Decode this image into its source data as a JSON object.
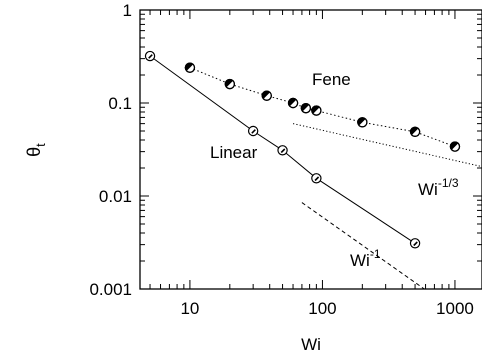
{
  "chart_data": {
    "type": "scatter",
    "xlabel": "Wi",
    "ylabel": "θ",
    "ylabel_sub": "t",
    "xscale": "log",
    "yscale": "log",
    "xlim": [
      4.2,
      1600
    ],
    "ylim": [
      0.001,
      1
    ],
    "xticks": [
      {
        "value": 10,
        "label": "10"
      },
      {
        "value": 100,
        "label": "100"
      },
      {
        "value": 1000,
        "label": "1000"
      }
    ],
    "yticks": [
      {
        "value": 0.001,
        "label": "0.001"
      },
      {
        "value": 0.01,
        "label": "0.01"
      },
      {
        "value": 0.1,
        "label": "0.1"
      },
      {
        "value": 1,
        "label": "1"
      }
    ],
    "grid": false,
    "legend": "none",
    "series": [
      {
        "name": "Linear",
        "line": "solid",
        "marker": "open-circle",
        "x": [
          5,
          30,
          50,
          90,
          500
        ],
        "y": [
          0.32,
          0.05,
          0.031,
          0.0155,
          0.0031
        ]
      },
      {
        "name": "Fene",
        "line": "dotted",
        "marker": "half-filled-circle",
        "x": [
          10,
          20,
          38,
          60,
          75,
          90,
          200,
          500,
          1000
        ],
        "y": [
          0.24,
          0.16,
          0.12,
          0.1,
          0.088,
          0.083,
          0.062,
          0.049,
          0.034
        ]
      }
    ],
    "guides": [
      {
        "label_base": "Wi",
        "label_exp": "-1/3",
        "style": "dotted",
        "x": [
          60,
          1600
        ],
        "y": [
          0.06,
          0.0207
        ]
      },
      {
        "label_base": "Wi",
        "label_exp": "-1",
        "style": "dashed",
        "x": [
          70,
          900
        ],
        "y": [
          0.0085,
          0.00065
        ]
      }
    ]
  }
}
